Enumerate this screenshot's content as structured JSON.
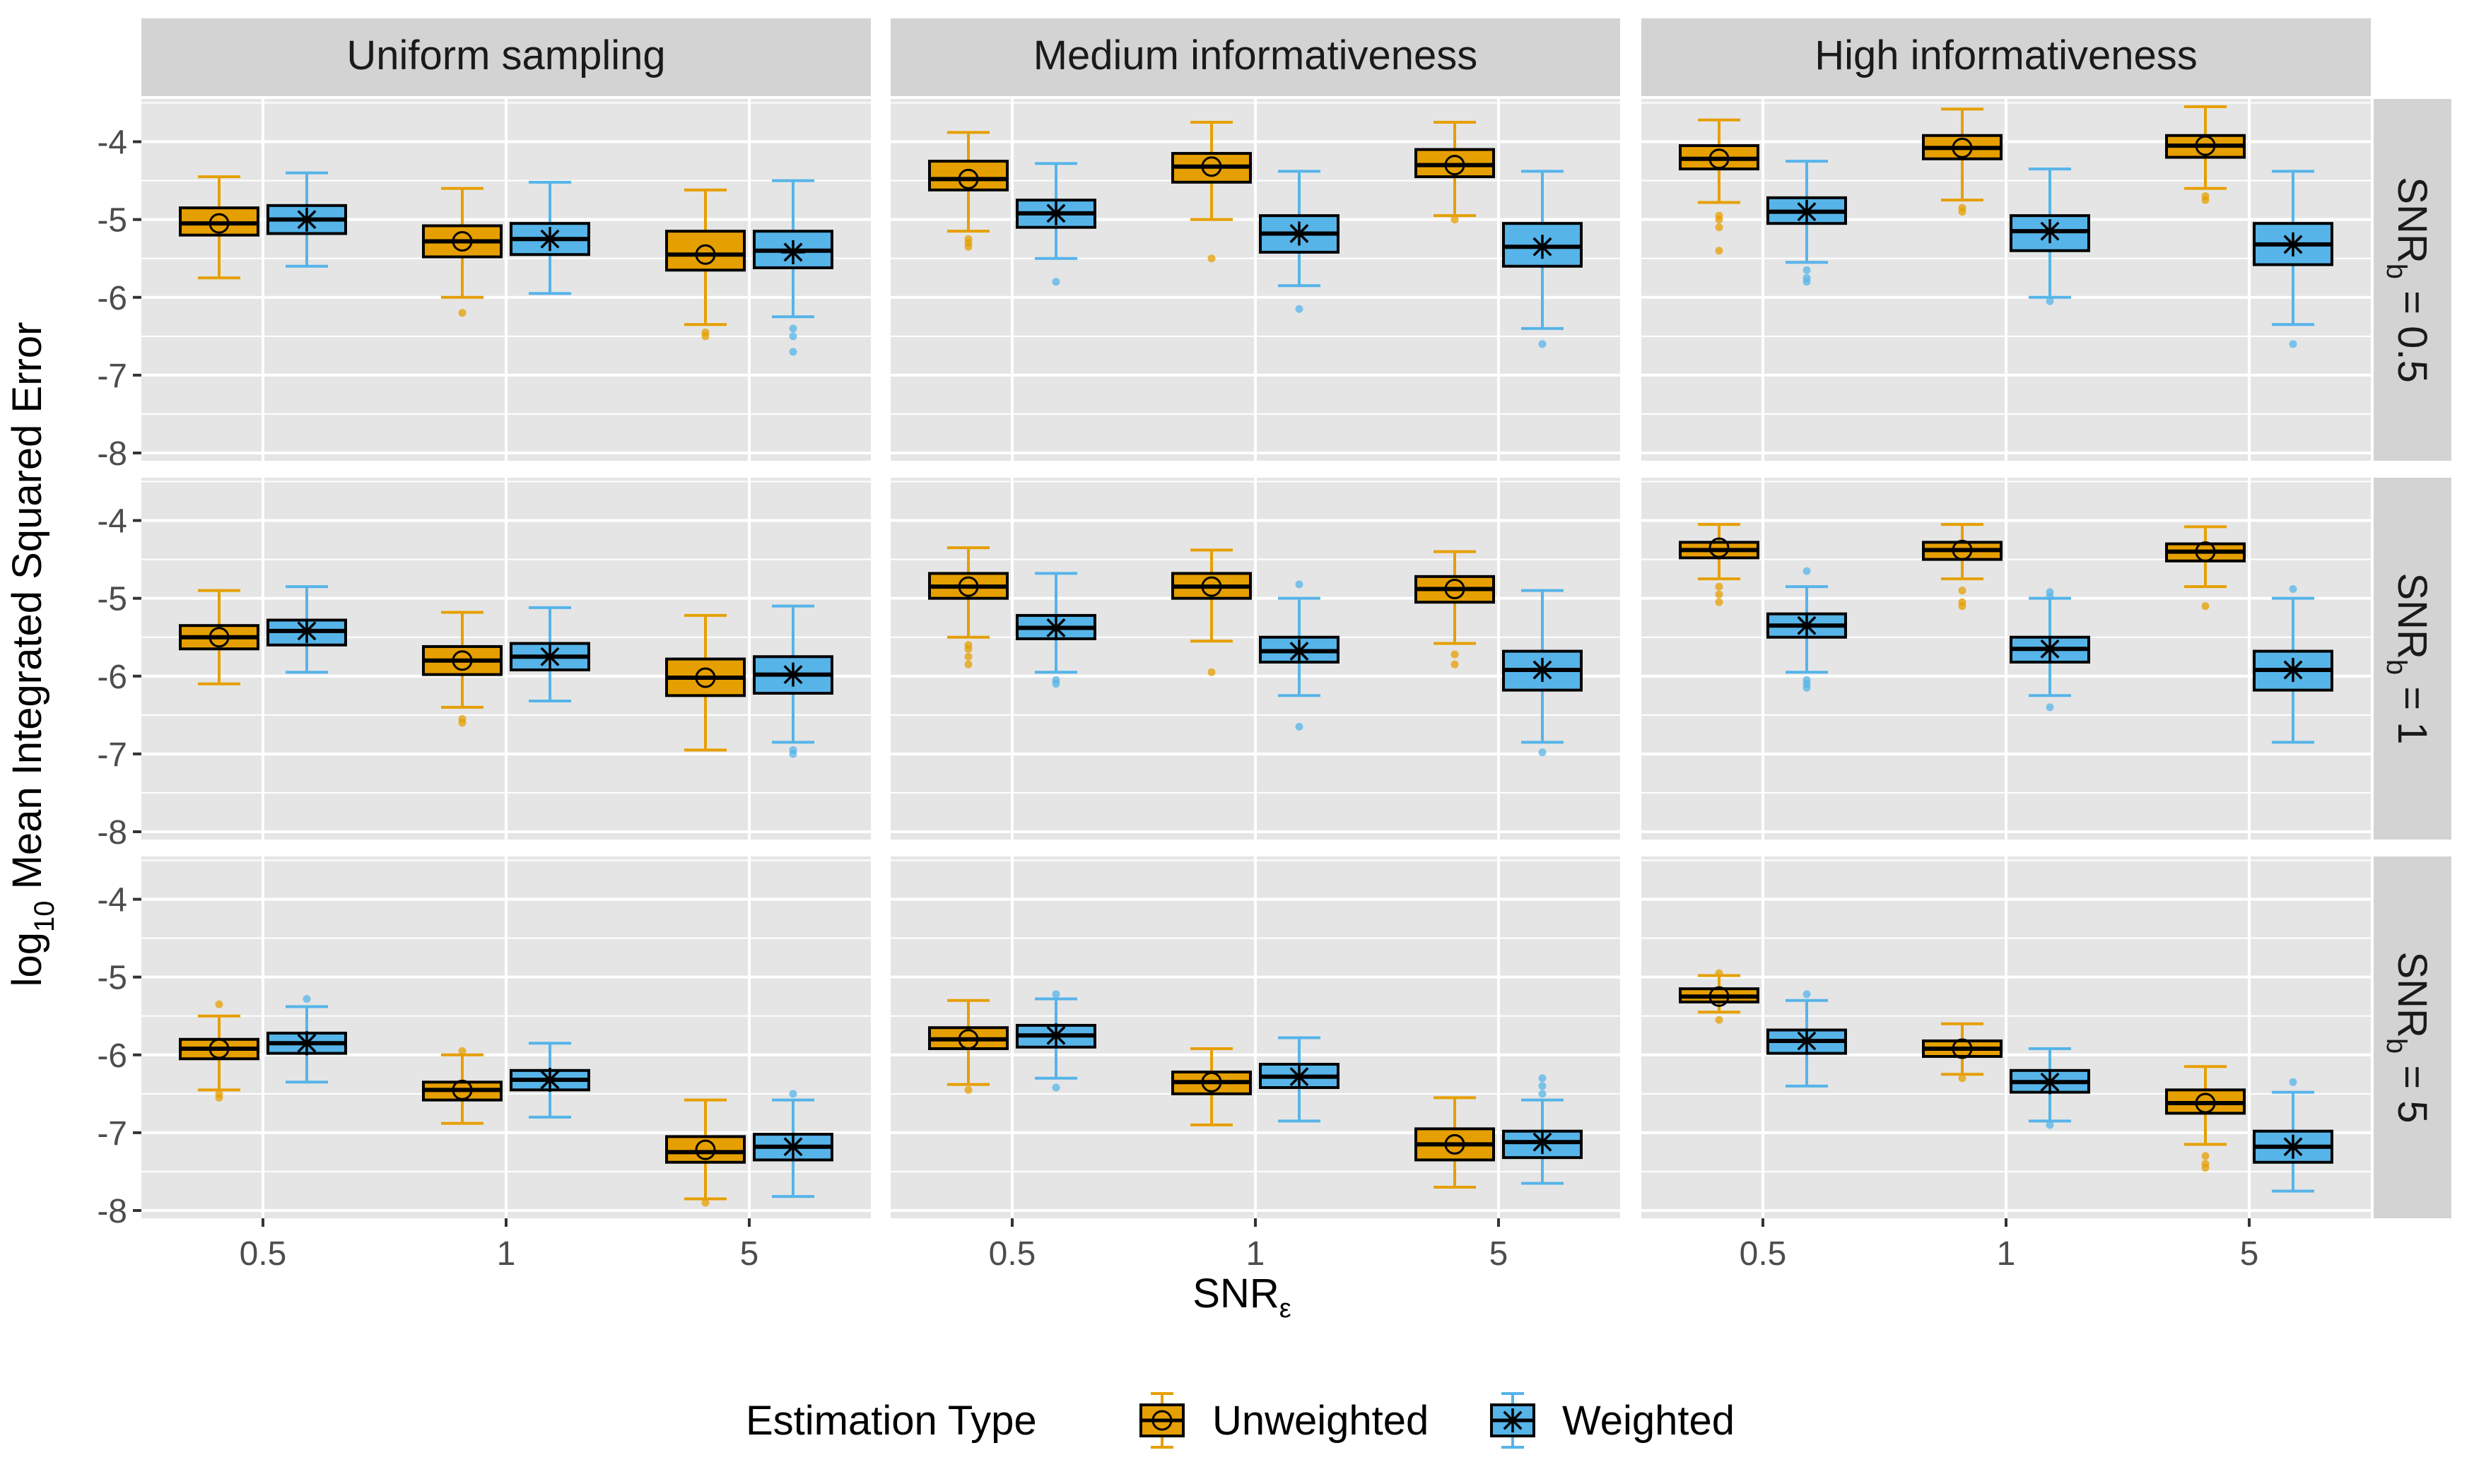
{
  "chart_data": {
    "type": "boxplot",
    "facet_columns": [
      "Uniform sampling",
      "Medium informativeness",
      "High informativeness"
    ],
    "facet_rows": [
      {
        "prefix": "SNR",
        "sub": "b",
        "suffix": " = 0.5"
      },
      {
        "prefix": "SNR",
        "sub": "b",
        "suffix": " = 1"
      },
      {
        "prefix": "SNR",
        "sub": "b",
        "suffix": " = 5"
      }
    ],
    "x_categories": [
      "0.5",
      "1",
      "5"
    ],
    "y_ticks": [
      "-4",
      "-5",
      "-6",
      "-7",
      "-8"
    ],
    "y_tick_values": [
      -4,
      -5,
      -6,
      -7,
      -8
    ],
    "ylim": [
      -8.1,
      -3.45
    ],
    "xlabel": {
      "prefix": "SNR",
      "sub": "ε"
    },
    "ylabel": {
      "prefix": "log",
      "sub": "10",
      "suffix": " Mean Integrated Squared Error"
    },
    "legend": {
      "title": "Estimation Type",
      "position": "bottom",
      "entries": [
        {
          "label": "Unweighted",
          "color": "#E69F00",
          "marker": "circle"
        },
        {
          "label": "Weighted",
          "color": "#56B4E9",
          "marker": "star"
        }
      ]
    },
    "colors": {
      "Unweighted": "#E69F00",
      "Weighted": "#56B4E9",
      "panel_bg": "#E5E5E5",
      "strip_bg": "#D3D3D3",
      "grid": "#FFFFFF"
    },
    "series_order": [
      "Unweighted",
      "Weighted"
    ],
    "boxes": [
      [
        [
          {
            "series": "Unweighted",
            "low": -5.75,
            "q1": -5.2,
            "med": -5.05,
            "q3": -4.85,
            "high": -4.45,
            "mean": -5.05,
            "out": []
          },
          {
            "series": "Weighted",
            "low": -5.6,
            "q1": -5.18,
            "med": -5.0,
            "q3": -4.82,
            "high": -4.4,
            "mean": -5.0,
            "out": []
          }
        ],
        [
          {
            "series": "Unweighted",
            "low": -6.0,
            "q1": -5.48,
            "med": -5.28,
            "q3": -5.08,
            "high": -4.6,
            "mean": -5.28,
            "out": [
              -6.2
            ]
          },
          {
            "series": "Weighted",
            "low": -5.95,
            "q1": -5.45,
            "med": -5.25,
            "q3": -5.05,
            "high": -4.52,
            "mean": -5.25,
            "out": []
          }
        ],
        [
          {
            "series": "Unweighted",
            "low": -6.35,
            "q1": -5.65,
            "med": -5.45,
            "q3": -5.15,
            "high": -4.62,
            "mean": -5.45,
            "out": [
              -6.45,
              -6.5
            ]
          },
          {
            "series": "Weighted",
            "low": -6.25,
            "q1": -5.62,
            "med": -5.4,
            "q3": -5.15,
            "high": -4.5,
            "mean": -5.42,
            "out": [
              -6.4,
              -6.5,
              -6.7
            ]
          }
        ]
      ],
      [
        [
          {
            "series": "Unweighted",
            "low": -5.15,
            "q1": -4.62,
            "med": -4.48,
            "q3": -4.25,
            "high": -3.88,
            "mean": -4.48,
            "out": [
              -5.25,
              -5.3,
              -5.35
            ]
          },
          {
            "series": "Weighted",
            "low": -5.5,
            "q1": -5.1,
            "med": -4.92,
            "q3": -4.75,
            "high": -4.28,
            "mean": -4.92,
            "out": [
              -5.8
            ]
          }
        ],
        [
          {
            "series": "Unweighted",
            "low": -5.0,
            "q1": -4.52,
            "med": -4.32,
            "q3": -4.15,
            "high": -3.75,
            "mean": -4.32,
            "out": [
              -5.5
            ]
          },
          {
            "series": "Weighted",
            "low": -5.85,
            "q1": -5.42,
            "med": -5.18,
            "q3": -4.95,
            "high": -4.38,
            "mean": -5.18,
            "out": [
              -6.15
            ]
          }
        ],
        [
          {
            "series": "Unweighted",
            "low": -4.95,
            "q1": -4.45,
            "med": -4.3,
            "q3": -4.1,
            "high": -3.75,
            "mean": -4.3,
            "out": [
              -5.0
            ]
          },
          {
            "series": "Weighted",
            "low": -6.4,
            "q1": -5.6,
            "med": -5.35,
            "q3": -5.05,
            "high": -4.38,
            "mean": -5.35,
            "out": [
              -6.6
            ]
          }
        ]
      ],
      [
        [
          {
            "series": "Unweighted",
            "low": -4.78,
            "q1": -4.35,
            "med": -4.22,
            "q3": -4.05,
            "high": -3.72,
            "mean": -4.22,
            "out": [
              -4.95,
              -5.0,
              -5.1,
              -5.4
            ]
          },
          {
            "series": "Weighted",
            "low": -5.55,
            "q1": -5.05,
            "med": -4.9,
            "q3": -4.72,
            "high": -4.25,
            "mean": -4.9,
            "out": [
              -5.65,
              -5.75,
              -5.8
            ]
          }
        ],
        [
          {
            "series": "Unweighted",
            "low": -4.75,
            "q1": -4.22,
            "med": -4.08,
            "q3": -3.92,
            "high": -3.58,
            "mean": -4.08,
            "out": [
              -4.85,
              -4.9
            ]
          },
          {
            "series": "Weighted",
            "low": -6.0,
            "q1": -5.4,
            "med": -5.15,
            "q3": -4.95,
            "high": -4.35,
            "mean": -5.15,
            "out": [
              -6.05
            ]
          }
        ],
        [
          {
            "series": "Unweighted",
            "low": -4.6,
            "q1": -4.2,
            "med": -4.05,
            "q3": -3.92,
            "high": -3.55,
            "mean": -4.05,
            "out": [
              -4.7,
              -4.75
            ]
          },
          {
            "series": "Weighted",
            "low": -6.35,
            "q1": -5.58,
            "med": -5.32,
            "q3": -5.05,
            "high": -4.38,
            "mean": -5.32,
            "out": [
              -6.6
            ]
          }
        ]
      ],
      [
        [
          {
            "series": "Unweighted",
            "low": -6.1,
            "q1": -5.65,
            "med": -5.5,
            "q3": -5.35,
            "high": -4.9,
            "mean": -5.5,
            "out": []
          },
          {
            "series": "Weighted",
            "low": -5.95,
            "q1": -5.6,
            "med": -5.42,
            "q3": -5.28,
            "high": -4.85,
            "mean": -5.42,
            "out": []
          }
        ],
        [
          {
            "series": "Unweighted",
            "low": -6.4,
            "q1": -5.98,
            "med": -5.8,
            "q3": -5.62,
            "high": -5.18,
            "mean": -5.8,
            "out": [
              -6.55,
              -6.6
            ]
          },
          {
            "series": "Weighted",
            "low": -6.32,
            "q1": -5.92,
            "med": -5.75,
            "q3": -5.58,
            "high": -5.12,
            "mean": -5.75,
            "out": []
          }
        ],
        [
          {
            "series": "Unweighted",
            "low": -6.95,
            "q1": -6.25,
            "med": -6.02,
            "q3": -5.78,
            "high": -5.22,
            "mean": -6.02,
            "out": []
          },
          {
            "series": "Weighted",
            "low": -6.85,
            "q1": -6.22,
            "med": -5.98,
            "q3": -5.75,
            "high": -5.1,
            "mean": -5.98,
            "out": [
              -6.95,
              -7.0
            ]
          }
        ]
      ],
      [
        [
          {
            "series": "Unweighted",
            "low": -5.5,
            "q1": -5.0,
            "med": -4.85,
            "q3": -4.68,
            "high": -4.35,
            "mean": -4.85,
            "out": [
              -5.6,
              -5.65,
              -5.75,
              -5.85
            ]
          },
          {
            "series": "Weighted",
            "low": -5.95,
            "q1": -5.52,
            "med": -5.38,
            "q3": -5.22,
            "high": -4.68,
            "mean": -5.38,
            "out": [
              -6.05,
              -6.1
            ]
          }
        ],
        [
          {
            "series": "Unweighted",
            "low": -5.55,
            "q1": -5.0,
            "med": -4.85,
            "q3": -4.68,
            "high": -4.38,
            "mean": -4.85,
            "out": [
              -5.95
            ]
          },
          {
            "series": "Weighted",
            "low": -6.25,
            "q1": -5.82,
            "med": -5.68,
            "q3": -5.5,
            "high": -5.0,
            "mean": -5.68,
            "out": [
              -4.82,
              -6.65
            ]
          }
        ],
        [
          {
            "series": "Unweighted",
            "low": -5.58,
            "q1": -5.05,
            "med": -4.88,
            "q3": -4.72,
            "high": -4.4,
            "mean": -4.88,
            "out": [
              -5.72,
              -5.85
            ]
          },
          {
            "series": "Weighted",
            "low": -6.85,
            "q1": -6.18,
            "med": -5.92,
            "q3": -5.68,
            "high": -4.9,
            "mean": -5.92,
            "out": [
              -6.98
            ]
          }
        ]
      ],
      [
        [
          {
            "series": "Unweighted",
            "low": -4.75,
            "q1": -4.48,
            "med": -4.38,
            "q3": -4.28,
            "high": -4.05,
            "mean": -4.35,
            "out": [
              -4.85,
              -4.95,
              -5.05
            ]
          },
          {
            "series": "Weighted",
            "low": -5.95,
            "q1": -5.5,
            "med": -5.35,
            "q3": -5.2,
            "high": -4.85,
            "mean": -5.35,
            "out": [
              -4.65,
              -6.05,
              -6.1,
              -6.15
            ]
          }
        ],
        [
          {
            "series": "Unweighted",
            "low": -4.75,
            "q1": -4.5,
            "med": -4.38,
            "q3": -4.28,
            "high": -4.05,
            "mean": -4.38,
            "out": [
              -4.9,
              -5.05,
              -5.1
            ]
          },
          {
            "series": "Weighted",
            "low": -6.25,
            "q1": -5.82,
            "med": -5.65,
            "q3": -5.5,
            "high": -5.0,
            "mean": -5.65,
            "out": [
              -4.92,
              -4.98,
              -6.4
            ]
          }
        ],
        [
          {
            "series": "Unweighted",
            "low": -4.85,
            "q1": -4.52,
            "med": -4.4,
            "q3": -4.3,
            "high": -4.08,
            "mean": -4.4,
            "out": [
              -5.1
            ]
          },
          {
            "series": "Weighted",
            "low": -6.85,
            "q1": -6.18,
            "med": -5.92,
            "q3": -5.68,
            "high": -5.0,
            "mean": -5.92,
            "out": [
              -4.88
            ]
          }
        ]
      ],
      [
        [
          {
            "series": "Unweighted",
            "low": -6.45,
            "q1": -6.05,
            "med": -5.92,
            "q3": -5.8,
            "high": -5.5,
            "mean": -5.92,
            "out": [
              -6.5,
              -6.55,
              -5.35
            ]
          },
          {
            "series": "Weighted",
            "low": -6.35,
            "q1": -5.98,
            "med": -5.85,
            "q3": -5.72,
            "high": -5.38,
            "mean": -5.85,
            "out": [
              -5.28
            ]
          }
        ],
        [
          {
            "series": "Unweighted",
            "low": -6.88,
            "q1": -6.58,
            "med": -6.45,
            "q3": -6.35,
            "high": -6.0,
            "mean": -6.45,
            "out": [
              -5.95
            ]
          },
          {
            "series": "Weighted",
            "low": -6.8,
            "q1": -6.45,
            "med": -6.32,
            "q3": -6.2,
            "high": -5.85,
            "mean": -6.32,
            "out": []
          }
        ],
        [
          {
            "series": "Unweighted",
            "low": -7.85,
            "q1": -7.38,
            "med": -7.25,
            "q3": -7.05,
            "high": -6.58,
            "mean": -7.22,
            "out": [
              -7.9
            ]
          },
          {
            "series": "Weighted",
            "low": -7.82,
            "q1": -7.35,
            "med": -7.18,
            "q3": -7.02,
            "high": -6.58,
            "mean": -7.18,
            "out": [
              -6.5
            ]
          }
        ]
      ],
      [
        [
          {
            "series": "Unweighted",
            "low": -6.38,
            "q1": -5.92,
            "med": -5.8,
            "q3": -5.65,
            "high": -5.3,
            "mean": -5.8,
            "out": [
              -6.45
            ]
          },
          {
            "series": "Weighted",
            "low": -6.3,
            "q1": -5.9,
            "med": -5.75,
            "q3": -5.62,
            "high": -5.28,
            "mean": -5.75,
            "out": [
              -5.22,
              -6.42
            ]
          }
        ],
        [
          {
            "series": "Unweighted",
            "low": -6.9,
            "q1": -6.5,
            "med": -6.35,
            "q3": -6.22,
            "high": -5.92,
            "mean": -6.35,
            "out": []
          },
          {
            "series": "Weighted",
            "low": -6.85,
            "q1": -6.42,
            "med": -6.28,
            "q3": -6.12,
            "high": -5.78,
            "mean": -6.28,
            "out": []
          }
        ],
        [
          {
            "series": "Unweighted",
            "low": -7.7,
            "q1": -7.35,
            "med": -7.15,
            "q3": -6.95,
            "high": -6.55,
            "mean": -7.15,
            "out": []
          },
          {
            "series": "Weighted",
            "low": -7.65,
            "q1": -7.32,
            "med": -7.12,
            "q3": -6.98,
            "high": -6.58,
            "mean": -7.12,
            "out": [
              -6.3,
              -6.4,
              -6.5
            ]
          }
        ]
      ],
      [
        [
          {
            "series": "Unweighted",
            "low": -5.45,
            "q1": -5.32,
            "med": -5.25,
            "q3": -5.15,
            "high": -4.98,
            "mean": -5.25,
            "out": [
              -4.95,
              -5.55
            ]
          },
          {
            "series": "Weighted",
            "low": -6.4,
            "q1": -5.98,
            "med": -5.82,
            "q3": -5.68,
            "high": -5.3,
            "mean": -5.82,
            "out": [
              -5.22
            ]
          }
        ],
        [
          {
            "series": "Unweighted",
            "low": -6.25,
            "q1": -6.02,
            "med": -5.92,
            "q3": -5.82,
            "high": -5.6,
            "mean": -5.92,
            "out": [
              -6.3
            ]
          },
          {
            "series": "Weighted",
            "low": -6.85,
            "q1": -6.48,
            "med": -6.35,
            "q3": -6.2,
            "high": -5.92,
            "mean": -6.35,
            "out": [
              -6.9
            ]
          }
        ],
        [
          {
            "series": "Unweighted",
            "low": -7.15,
            "q1": -6.75,
            "med": -6.62,
            "q3": -6.45,
            "high": -6.15,
            "mean": -6.62,
            "out": [
              -7.3,
              -7.4,
              -7.45
            ]
          },
          {
            "series": "Weighted",
            "low": -7.75,
            "q1": -7.38,
            "med": -7.18,
            "q3": -6.98,
            "high": -6.48,
            "mean": -7.18,
            "out": [
              -6.35
            ]
          }
        ]
      ]
    ]
  }
}
